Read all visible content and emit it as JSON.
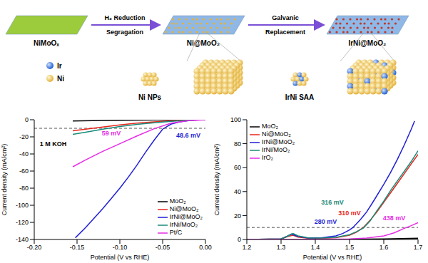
{
  "diagram": {
    "stages": [
      {
        "label": "NiMoOₓ",
        "color": "#9ccc3c"
      },
      {
        "label": "Ni@MoO₂",
        "color": "#8fb8e6"
      },
      {
        "label": "IrNi@MoO₂",
        "color": "#8fb8e6"
      }
    ],
    "arrows": [
      {
        "top": "H₂ Reduction",
        "bottom": "Segragation"
      },
      {
        "top": "Galvanic",
        "bottom": "Replacement"
      }
    ],
    "legend": [
      {
        "label": "Ir",
        "color": "#1f5fd1"
      },
      {
        "label": "Ni",
        "color": "#e3b23c"
      }
    ],
    "insets": [
      {
        "label": "Ni NPs"
      },
      {
        "label": "IrNi SAA"
      }
    ]
  },
  "chart_data": [
    {
      "type": "line",
      "xlabel": "Potential (V vs RHE)",
      "ylabel": "Current density (mA/cm²)",
      "xlim": [
        -0.2,
        0
      ],
      "xticks": [
        {
          "value": -0.2,
          "label": "-0.20"
        },
        {
          "value": -0.15,
          "label": "-0.15"
        },
        {
          "value": -0.1,
          "label": "-0.10"
        },
        {
          "value": -0.05,
          "label": "-0.05"
        },
        {
          "value": 0,
          "label": "0.00"
        }
      ],
      "ylim": [
        -140,
        0
      ],
      "yticks": [
        -140,
        -120,
        -100,
        -80,
        -60,
        -40,
        -20,
        0
      ],
      "legend": "lower right",
      "reference_y": -10,
      "annotations": [
        {
          "text": "1 M KOH",
          "color": "#000000"
        },
        {
          "text": "59 mV",
          "color": "#e52ce5"
        },
        {
          "text": "48.6 mV",
          "color": "#1f1fd6"
        }
      ],
      "series": [
        {
          "name": "MoO₂",
          "color": "#000000",
          "x": [
            -0.155,
            -0.12,
            -0.08,
            -0.04,
            0
          ],
          "values": [
            -1.5,
            -0.8,
            -0.4,
            -0.1,
            0
          ]
        },
        {
          "name": "Ni@MoO₂",
          "color": "#e8261c",
          "x": [
            -0.155,
            -0.14,
            -0.12,
            -0.1,
            -0.08,
            -0.06,
            -0.04,
            -0.02,
            0
          ],
          "values": [
            -13,
            -11,
            -8.5,
            -6,
            -4,
            -2.5,
            -1.2,
            -0.4,
            0
          ]
        },
        {
          "name": "IrNi@MoO₂",
          "color": "#1f1fd6",
          "x": [
            -0.152,
            -0.14,
            -0.13,
            -0.12,
            -0.11,
            -0.1,
            -0.09,
            -0.08,
            -0.07,
            -0.06,
            -0.05,
            -0.04,
            -0.03,
            -0.02,
            -0.01,
            0
          ],
          "values": [
            -138,
            -126,
            -115,
            -104,
            -92,
            -80,
            -67,
            -53,
            -38,
            -24,
            -11,
            -5,
            -2.5,
            -1,
            -0.3,
            0
          ]
        },
        {
          "name": "IrNi/MoO₂",
          "color": "#1a8a78",
          "x": [
            -0.155,
            -0.14,
            -0.12,
            -0.1,
            -0.08,
            -0.06,
            -0.04,
            -0.02,
            0
          ],
          "values": [
            -17,
            -14.5,
            -11,
            -8,
            -5.5,
            -3.5,
            -1.8,
            -0.6,
            0
          ]
        },
        {
          "name": "Pt/C",
          "color": "#e52ce5",
          "x": [
            -0.155,
            -0.14,
            -0.12,
            -0.1,
            -0.08,
            -0.06,
            -0.04,
            -0.02,
            0
          ],
          "values": [
            -55,
            -47,
            -37,
            -28,
            -19,
            -10.5,
            -4,
            -1,
            0
          ]
        }
      ]
    },
    {
      "type": "line",
      "xlabel": "Potential (V vs RHE)",
      "ylabel": "Current density (mA/cm²)",
      "xlim": [
        1.2,
        1.7
      ],
      "xticks": [
        1.2,
        1.3,
        1.4,
        1.5,
        1.6,
        1.7
      ],
      "ylim": [
        0,
        100
      ],
      "yticks": [
        0,
        20,
        40,
        60,
        80,
        100
      ],
      "legend": "upper left",
      "reference_y": 10,
      "annotations": [
        {
          "text": "316 mV",
          "color": "#1a8a78"
        },
        {
          "text": "310 mV",
          "color": "#e8261c"
        },
        {
          "text": "280 mV",
          "color": "#1f1fd6"
        },
        {
          "text": "438 mV",
          "color": "#e52ce5"
        }
      ],
      "series": [
        {
          "name": "MoO₂",
          "color": "#000000",
          "x": [
            1.2,
            1.3,
            1.4,
            1.5,
            1.6,
            1.7
          ],
          "values": [
            0,
            0,
            0.1,
            0.2,
            0.4,
            1
          ]
        },
        {
          "name": "Ni@MoO₂",
          "color": "#e8261c",
          "x": [
            1.2,
            1.3,
            1.32,
            1.335,
            1.35,
            1.38,
            1.42,
            1.46,
            1.5,
            1.52,
            1.54,
            1.56,
            1.58,
            1.6,
            1.62,
            1.64,
            1.66,
            1.68,
            1.7
          ],
          "values": [
            0,
            0.5,
            2.5,
            3.5,
            2,
            1,
            1,
            1.5,
            3.5,
            6,
            10,
            16,
            23,
            31,
            39,
            47,
            55,
            63,
            71
          ]
        },
        {
          "name": "IrNi@MoO₂",
          "color": "#1f1fd6",
          "x": [
            1.2,
            1.3,
            1.32,
            1.33,
            1.35,
            1.38,
            1.42,
            1.46,
            1.48,
            1.5,
            1.51,
            1.53,
            1.55,
            1.57,
            1.6,
            1.62,
            1.64,
            1.66,
            1.68,
            1.69
          ],
          "values": [
            0,
            0.5,
            3,
            4.5,
            2.5,
            1.2,
            1.5,
            3,
            5,
            8,
            10,
            16,
            23,
            32,
            46,
            56,
            67,
            79,
            92,
            99
          ]
        },
        {
          "name": "IrNi/MoO₂",
          "color": "#1a8a78",
          "x": [
            1.2,
            1.3,
            1.32,
            1.335,
            1.35,
            1.38,
            1.42,
            1.46,
            1.5,
            1.52,
            1.54,
            1.56,
            1.58,
            1.6,
            1.62,
            1.64,
            1.66,
            1.68,
            1.7
          ],
          "values": [
            0,
            0.5,
            3,
            5,
            3,
            1.3,
            1.2,
            1.8,
            4,
            6.5,
            9.5,
            15.5,
            24,
            32,
            41,
            49,
            57,
            65,
            74
          ]
        },
        {
          "name": "IrO₂",
          "color": "#e52ce5",
          "x": [
            1.2,
            1.4,
            1.5,
            1.55,
            1.6,
            1.63,
            1.66,
            1.68,
            1.7
          ],
          "values": [
            0,
            0.1,
            0.5,
            1.2,
            3,
            5.5,
            9.3,
            11.5,
            14
          ]
        }
      ]
    }
  ]
}
